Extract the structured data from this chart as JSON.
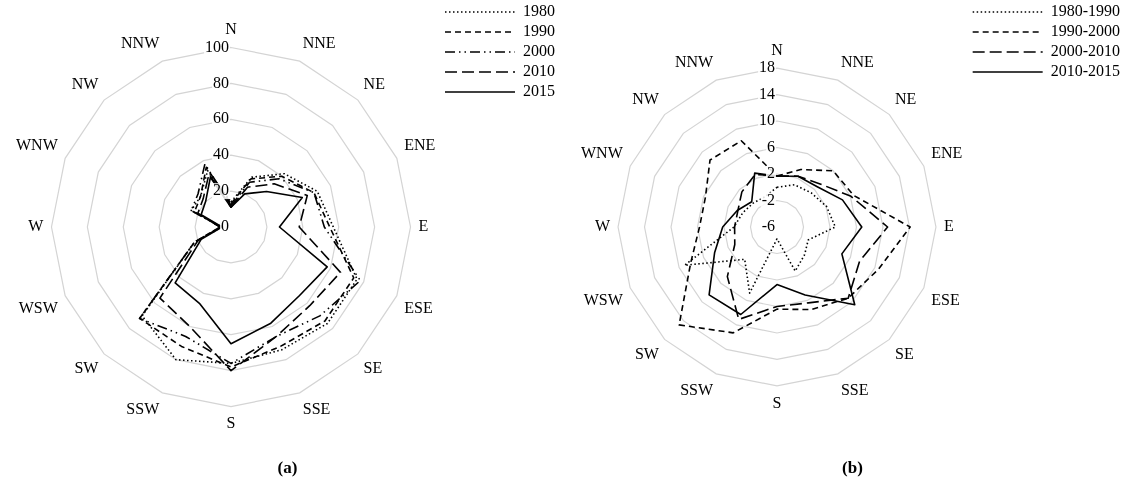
{
  "chart_data": [
    {
      "type": "radar",
      "subtitle": "(a)",
      "categories": [
        "N",
        "NNE",
        "NE",
        "ENE",
        "E",
        "ESE",
        "SE",
        "SSE",
        "S",
        "SSW",
        "SW",
        "WSW",
        "W",
        "WNW",
        "NW",
        "NNW"
      ],
      "ylim": [
        0,
        100
      ],
      "yticks": [
        0,
        20,
        40,
        60,
        80,
        100
      ],
      "grid": true,
      "legend": "top right",
      "marker": "none",
      "series": [
        {
          "name": "1980",
          "color": "#000000",
          "line_style": "dotted",
          "values": [
            14,
            30,
            42,
            52,
            57,
            76,
            76,
            74,
            76,
            80,
            70,
            22,
            5,
            24,
            24,
            34
          ]
        },
        {
          "name": "1990",
          "color": "#000000",
          "line_style": "dashed",
          "values": [
            13,
            29,
            40,
            50,
            55,
            74,
            74,
            72,
            78,
            72,
            72,
            22,
            6,
            22,
            24,
            36
          ]
        },
        {
          "name": "2000",
          "color": "#000000",
          "line_style": "dashdot",
          "values": [
            12,
            27,
            38,
            50,
            52,
            78,
            70,
            66,
            76,
            66,
            72,
            22,
            6,
            24,
            26,
            38
          ]
        },
        {
          "name": "2010",
          "color": "#000000",
          "line_style": "longdash",
          "values": [
            11,
            24,
            34,
            46,
            38,
            66,
            62,
            66,
            80,
            60,
            56,
            20,
            6,
            20,
            22,
            32
          ]
        },
        {
          "name": "2015",
          "color": "#000000",
          "line_style": "solid",
          "values": [
            11,
            20,
            28,
            43,
            27,
            58,
            54,
            58,
            65,
            46,
            44,
            18,
            5,
            18,
            20,
            30
          ]
        }
      ]
    },
    {
      "type": "radar",
      "subtitle": "(b)",
      "categories": [
        "N",
        "NNE",
        "NE",
        "ENE",
        "E",
        "ESE",
        "SE",
        "SSE",
        "S",
        "SSW",
        "SW",
        "WSW",
        "W",
        "WNW",
        "NW",
        "NNW"
      ],
      "ylim": [
        -6,
        18
      ],
      "yticks": [
        -6,
        -2,
        2,
        6,
        10,
        14,
        18
      ],
      "grid": true,
      "legend": "top right",
      "marker": "none",
      "series": [
        {
          "name": "1980-1990",
          "color": "#000000",
          "line_style": "dotted",
          "values": [
            0,
            0.9,
            1.3,
            2.1,
            2.8,
            -0.9,
            -0.1,
            1.2,
            -4.2,
            4.8,
            0.9,
            9.1,
            0.5,
            -0.4,
            -0.9,
            -1.1
          ]
        },
        {
          "name": "1990-2000",
          "color": "#000000",
          "line_style": "dashed",
          "values": [
            1.7,
            3.4,
            6,
            6.5,
            14.1,
            10.6,
            9.2,
            7.5,
            6.4,
            11.3,
            14.9,
            8.1,
            5.7,
            5.7,
            8.3,
            8.1
          ]
        },
        {
          "name": "2000-2010",
          "color": "#000000",
          "line_style": "longdash",
          "values": [
            1.7,
            2.3,
            3.2,
            6.1,
            10.7,
            7.5,
            9.2,
            6.4,
            6,
            9.1,
            4.6,
            0.9,
            0.4,
            0.4,
            1.5,
            2.6
          ]
        },
        {
          "name": "2010-2015",
          "color": "#000000",
          "line_style": "solid",
          "values": [
            1.7,
            2.3,
            2.6,
            4.7,
            6.8,
            4.6,
            10.6,
            5.1,
            2.7,
            8.3,
            8.5,
            4.2,
            2.2,
            0.5,
            -0.6,
            2.8
          ]
        }
      ]
    }
  ]
}
